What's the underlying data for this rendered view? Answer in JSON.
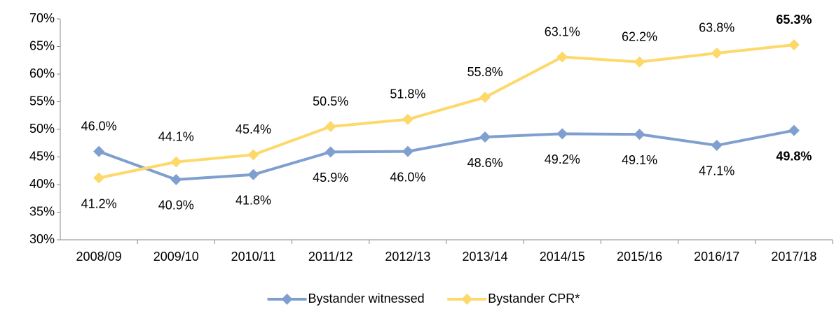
{
  "chart_data": {
    "type": "line",
    "categories": [
      "2008/09",
      "2009/10",
      "2010/11",
      "2011/12",
      "2012/13",
      "2013/14",
      "2014/15",
      "2015/16",
      "2016/17",
      "2017/18"
    ],
    "series": [
      {
        "name": "Bystander witnessed",
        "color": "#7f9fcf",
        "values": [
          46.0,
          40.9,
          41.8,
          45.9,
          46.0,
          48.6,
          49.2,
          49.1,
          47.1,
          49.8
        ],
        "value_labels": [
          "46.0%",
          "40.9%",
          "41.8%",
          "45.9%",
          "46.0%",
          "48.6%",
          "49.2%",
          "49.1%",
          "47.1%",
          "49.8%"
        ]
      },
      {
        "name": "Bystander CPR*",
        "color": "#fdd96b",
        "values": [
          41.2,
          44.1,
          45.4,
          50.5,
          51.8,
          55.8,
          63.1,
          62.2,
          63.8,
          65.3
        ],
        "value_labels": [
          "41.2%",
          "44.1%",
          "45.4%",
          "50.5%",
          "51.8%",
          "55.8%",
          "63.1%",
          "62.2%",
          "63.8%",
          "65.3%"
        ]
      }
    ],
    "ylim": [
      30,
      70
    ],
    "yticks": [
      {
        "value": 30,
        "label": "30%"
      },
      {
        "value": 35,
        "label": "35%"
      },
      {
        "value": 40,
        "label": "40%"
      },
      {
        "value": 45,
        "label": "45%"
      },
      {
        "value": 50,
        "label": "50%"
      },
      {
        "value": 55,
        "label": "55%"
      },
      {
        "value": 60,
        "label": "60%"
      },
      {
        "value": 65,
        "label": "65%"
      },
      {
        "value": 70,
        "label": "70%"
      }
    ],
    "legend": "bottom"
  }
}
